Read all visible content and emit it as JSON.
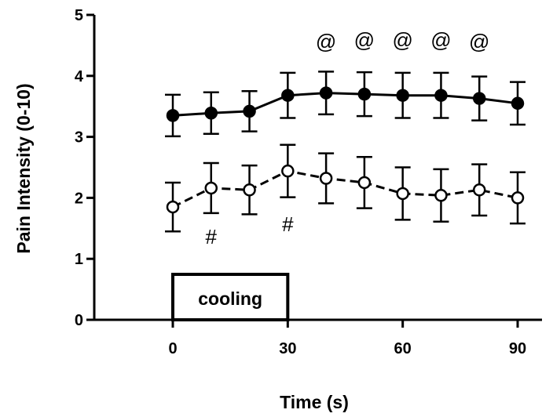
{
  "chart_data": {
    "type": "line",
    "title": "",
    "xlabel": "Time (s)",
    "ylabel": "Pain Intensity (0-10)",
    "xlim": [
      -15,
      95
    ],
    "ylim": [
      0,
      5
    ],
    "xticks": [
      0,
      30,
      60,
      90
    ],
    "yticks": [
      0,
      1,
      2,
      3,
      4,
      5
    ],
    "x": [
      0,
      10,
      20,
      30,
      40,
      50,
      60,
      70,
      80,
      90
    ],
    "grid": false,
    "series": [
      {
        "marker": "filled-circle",
        "line": "solid",
        "values": [
          3.35,
          3.39,
          3.42,
          3.68,
          3.72,
          3.7,
          3.68,
          3.68,
          3.63,
          3.55
        ],
        "errors": [
          0.34,
          0.34,
          0.33,
          0.37,
          0.35,
          0.36,
          0.37,
          0.37,
          0.36,
          0.35
        ]
      },
      {
        "marker": "open-circle",
        "line": "dashed",
        "values": [
          1.85,
          2.16,
          2.13,
          2.44,
          2.32,
          2.25,
          2.07,
          2.04,
          2.13,
          2.0
        ],
        "errors": [
          0.4,
          0.41,
          0.4,
          0.43,
          0.41,
          0.42,
          0.43,
          0.43,
          0.42,
          0.42
        ]
      }
    ],
    "annotations": [
      {
        "text": "@",
        "x": 40,
        "y": 4.45
      },
      {
        "text": "@",
        "x": 50,
        "y": 4.47
      },
      {
        "text": "@",
        "x": 60,
        "y": 4.47
      },
      {
        "text": "@",
        "x": 70,
        "y": 4.47
      },
      {
        "text": "@",
        "x": 80,
        "y": 4.45
      },
      {
        "text": "#",
        "x": 10,
        "y": 1.25
      },
      {
        "text": "#",
        "x": 30,
        "y": 1.45
      }
    ],
    "box": {
      "label": "cooling",
      "x_start": 0,
      "x_end": 30
    }
  }
}
